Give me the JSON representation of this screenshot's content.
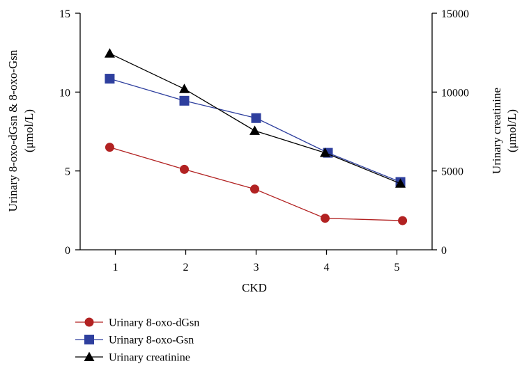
{
  "chart_data": {
    "type": "line",
    "x": [
      1,
      2,
      3,
      4,
      5
    ],
    "xlabel": "CKD",
    "xticks": [
      "1",
      "2",
      "3",
      "4",
      "5"
    ],
    "ylabel_left_line1": "Urinary 8-oxo-dGsn & 8-oxo-Gsn",
    "ylabel_left_line2": "(μmol/L)",
    "ylabel_right_line1": "Urinary creatinine",
    "ylabel_right_line2": "(μmol/L)",
    "ylim_left": [
      0,
      15
    ],
    "ylim_right": [
      0,
      15000
    ],
    "yticks_left": [
      "0",
      "5",
      "10",
      "15"
    ],
    "yticks_right": [
      "0",
      "5000",
      "10000",
      "15000"
    ],
    "grid": false,
    "legend_position": "bottom-left",
    "series": [
      {
        "name": "Urinary 8-oxo-dGsn",
        "axis": "left",
        "marker": "circle",
        "color": "#b22222",
        "x": [
          0.92,
          1.98,
          2.98,
          3.98,
          5.08
        ],
        "values": [
          6.5,
          5.1,
          3.85,
          2.0,
          1.85
        ]
      },
      {
        "name": "Urinary 8-oxo-Gsn",
        "axis": "left",
        "marker": "square",
        "color": "#2e3f9e",
        "x": [
          0.92,
          1.98,
          3.0,
          4.02,
          5.05
        ],
        "values": [
          10.85,
          9.45,
          8.35,
          6.15,
          4.3
        ]
      },
      {
        "name": "Urinary creatinine",
        "axis": "right",
        "marker": "triangle",
        "color": "#000000",
        "x": [
          0.92,
          1.98,
          2.98,
          3.98,
          5.05
        ],
        "values": [
          12450,
          10200,
          7550,
          6150,
          4200
        ]
      }
    ]
  }
}
